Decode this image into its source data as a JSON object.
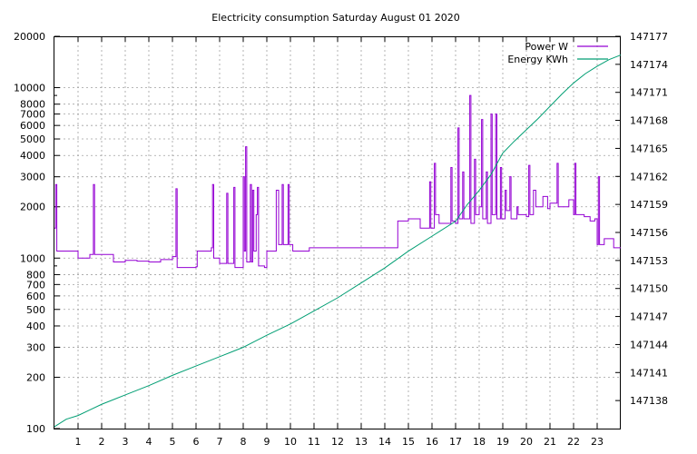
{
  "chart_data": {
    "type": "line",
    "title": "Electricity consumption Saturday August 01 2020",
    "x": {
      "range": [
        0,
        24
      ],
      "ticks": [
        1,
        2,
        3,
        4,
        5,
        6,
        7,
        8,
        9,
        10,
        11,
        12,
        13,
        14,
        15,
        16,
        17,
        18,
        19,
        20,
        21,
        22,
        23
      ],
      "tick_labels": [
        "1",
        "2",
        "3",
        "4",
        "5",
        "6",
        "7",
        "8",
        "9",
        "10",
        "11",
        "12",
        "13",
        "14",
        "15",
        "16",
        "17",
        "18",
        "19",
        "20",
        "21",
        "22",
        "23"
      ]
    },
    "y_left": {
      "scale": "log",
      "range": [
        100,
        20000
      ],
      "ticks": [
        100,
        200,
        300,
        400,
        500,
        600,
        700,
        800,
        1000,
        2000,
        3000,
        4000,
        5000,
        6000,
        7000,
        8000,
        10000,
        20000
      ],
      "tick_labels": [
        "100",
        "200",
        "300",
        "400",
        "500",
        "600",
        "700",
        "800",
        "1000",
        "2000",
        "3000",
        "4000",
        "5000",
        "6000",
        "7000",
        "8000",
        "10000",
        "20000"
      ]
    },
    "y_right": {
      "scale": "linear",
      "range": [
        147135,
        147177
      ],
      "ticks": [
        147138,
        147141,
        147144,
        147147,
        147150,
        147153,
        147156,
        147159,
        147162,
        147165,
        147168,
        147171,
        147174,
        147177
      ],
      "tick_labels": [
        "147138",
        "147141",
        "147144",
        "147147",
        "147150",
        "147153",
        "147156",
        "147159",
        "147162",
        "147165",
        "147168",
        "147171",
        "147174",
        "147177"
      ]
    },
    "grid": true,
    "legend_position": "top-right",
    "series": [
      {
        "name": "Power W",
        "axis": "left",
        "color": "#9400d3",
        "style": "step",
        "points": [
          [
            0.0,
            1500
          ],
          [
            0.05,
            2700
          ],
          [
            0.1,
            1100
          ],
          [
            0.5,
            1100
          ],
          [
            1.0,
            1000
          ],
          [
            1.5,
            1050
          ],
          [
            1.65,
            2700
          ],
          [
            1.7,
            1050
          ],
          [
            2.0,
            1050
          ],
          [
            2.5,
            950
          ],
          [
            3.0,
            970
          ],
          [
            3.5,
            960
          ],
          [
            4.0,
            950
          ],
          [
            4.5,
            980
          ],
          [
            5.0,
            1020
          ],
          [
            5.1,
            1020
          ],
          [
            5.15,
            2550
          ],
          [
            5.2,
            880
          ],
          [
            5.5,
            880
          ],
          [
            6.0,
            890
          ],
          [
            6.05,
            1100
          ],
          [
            6.3,
            1100
          ],
          [
            6.65,
            1150
          ],
          [
            6.7,
            2700
          ],
          [
            6.75,
            1000
          ],
          [
            7.0,
            930
          ],
          [
            7.3,
            2400
          ],
          [
            7.35,
            930
          ],
          [
            7.55,
            930
          ],
          [
            7.6,
            2600
          ],
          [
            7.65,
            880
          ],
          [
            7.95,
            880
          ],
          [
            8.0,
            3000
          ],
          [
            8.05,
            1100
          ],
          [
            8.1,
            4500
          ],
          [
            8.15,
            950
          ],
          [
            8.3,
            2700
          ],
          [
            8.35,
            950
          ],
          [
            8.4,
            2500
          ],
          [
            8.45,
            1100
          ],
          [
            8.55,
            1800
          ],
          [
            8.6,
            2600
          ],
          [
            8.65,
            900
          ],
          [
            8.9,
            880
          ],
          [
            9.0,
            1100
          ],
          [
            9.3,
            1100
          ],
          [
            9.4,
            2500
          ],
          [
            9.5,
            1200
          ],
          [
            9.65,
            2700
          ],
          [
            9.7,
            1200
          ],
          [
            9.9,
            2700
          ],
          [
            9.95,
            1200
          ],
          [
            10.1,
            1100
          ],
          [
            10.5,
            1100
          ],
          [
            10.8,
            1150
          ],
          [
            11.0,
            1150
          ],
          [
            12.0,
            1150
          ],
          [
            13.0,
            1150
          ],
          [
            14.0,
            1150
          ],
          [
            14.5,
            1150
          ],
          [
            14.55,
            1650
          ],
          [
            14.8,
            1650
          ],
          [
            15.0,
            1700
          ],
          [
            15.5,
            1500
          ],
          [
            15.8,
            1500
          ],
          [
            15.9,
            2800
          ],
          [
            15.95,
            1500
          ],
          [
            16.1,
            3600
          ],
          [
            16.15,
            1800
          ],
          [
            16.3,
            1600
          ],
          [
            16.55,
            1600
          ],
          [
            16.8,
            3400
          ],
          [
            16.85,
            1650
          ],
          [
            17.0,
            1600
          ],
          [
            17.1,
            5800
          ],
          [
            17.15,
            1700
          ],
          [
            17.3,
            3200
          ],
          [
            17.35,
            1700
          ],
          [
            17.6,
            9000
          ],
          [
            17.65,
            1600
          ],
          [
            17.8,
            3800
          ],
          [
            17.85,
            1800
          ],
          [
            18.0,
            2000
          ],
          [
            18.1,
            6500
          ],
          [
            18.15,
            1700
          ],
          [
            18.3,
            3200
          ],
          [
            18.35,
            1600
          ],
          [
            18.5,
            7000
          ],
          [
            18.55,
            1800
          ],
          [
            18.7,
            7000
          ],
          [
            18.75,
            1700
          ],
          [
            18.9,
            3400
          ],
          [
            18.95,
            1700
          ],
          [
            19.1,
            2500
          ],
          [
            19.15,
            1900
          ],
          [
            19.3,
            3000
          ],
          [
            19.35,
            1700
          ],
          [
            19.6,
            2000
          ],
          [
            19.65,
            1800
          ],
          [
            20.0,
            1750
          ],
          [
            20.1,
            3500
          ],
          [
            20.15,
            1800
          ],
          [
            20.3,
            2500
          ],
          [
            20.4,
            2000
          ],
          [
            20.7,
            2300
          ],
          [
            20.9,
            1950
          ],
          [
            21.0,
            2100
          ],
          [
            21.3,
            3600
          ],
          [
            21.35,
            2000
          ],
          [
            21.5,
            2000
          ],
          [
            21.8,
            2200
          ],
          [
            22.0,
            1800
          ],
          [
            22.05,
            3600
          ],
          [
            22.1,
            1800
          ],
          [
            22.4,
            1800
          ],
          [
            22.45,
            1750
          ],
          [
            22.7,
            1650
          ],
          [
            22.9,
            1700
          ],
          [
            23.0,
            1200
          ],
          [
            23.05,
            3000
          ],
          [
            23.1,
            1200
          ],
          [
            23.3,
            1300
          ],
          [
            23.6,
            1300
          ],
          [
            23.7,
            1150
          ],
          [
            24.0,
            1150
          ]
        ]
      },
      {
        "name": "Energy KWh",
        "axis": "right",
        "color": "#009e73",
        "style": "line",
        "points": [
          [
            0.0,
            147135.2
          ],
          [
            0.5,
            147136.0
          ],
          [
            1.0,
            147136.4
          ],
          [
            1.5,
            147137.0
          ],
          [
            2.0,
            147137.6
          ],
          [
            3.0,
            147138.6
          ],
          [
            4.0,
            147139.6
          ],
          [
            5.0,
            147140.7
          ],
          [
            6.0,
            147141.7
          ],
          [
            7.0,
            147142.7
          ],
          [
            8.0,
            147143.7
          ],
          [
            9.0,
            147145.0
          ],
          [
            10.0,
            147146.2
          ],
          [
            11.0,
            147147.6
          ],
          [
            12.0,
            147149.0
          ],
          [
            13.0,
            147150.6
          ],
          [
            14.0,
            147152.2
          ],
          [
            15.0,
            147154.0
          ],
          [
            16.0,
            147155.6
          ],
          [
            17.0,
            147157.2
          ],
          [
            17.5,
            147159.0
          ],
          [
            18.0,
            147160.5
          ],
          [
            18.5,
            147162.2
          ],
          [
            19.0,
            147164.5
          ],
          [
            19.5,
            147165.8
          ],
          [
            20.0,
            147167.0
          ],
          [
            20.5,
            147168.2
          ],
          [
            21.0,
            147169.5
          ],
          [
            21.5,
            147170.8
          ],
          [
            22.0,
            147172.0
          ],
          [
            22.5,
            147173.0
          ],
          [
            23.0,
            147173.8
          ],
          [
            23.5,
            147174.5
          ],
          [
            24.0,
            147175.0
          ]
        ]
      }
    ]
  }
}
